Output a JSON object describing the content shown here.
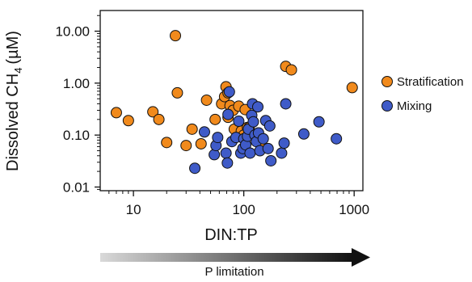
{
  "chart_data": {
    "type": "scatter",
    "xscale": "log",
    "yscale": "log",
    "xlim": [
      5,
      1200
    ],
    "ylim": [
      0.0085,
      25
    ],
    "xticks": [
      10,
      100,
      1000
    ],
    "xtick_labels": [
      "10",
      "100",
      "1000"
    ],
    "yticks": [
      0.01,
      0.1,
      1,
      10
    ],
    "ytick_labels": [
      "0.01",
      "0.10",
      "1.00",
      "10.00"
    ],
    "xlabel": "DIN:TP",
    "ylabel": "Dissolved CH₄ (µM)",
    "ylabel_main": "Dissolved CH",
    "ylabel_sub": "4",
    "ylabel_unit": "(µM)",
    "grid": false,
    "legend_position": "right",
    "annotation_arrow": {
      "label": "P limitation",
      "direction": "left-to-right",
      "gradient": [
        "#d9d9d9",
        "#111111"
      ]
    },
    "series": [
      {
        "name": "Stratification",
        "color": "#F18A1C",
        "points": [
          {
            "x": 7,
            "y": 0.27
          },
          {
            "x": 9,
            "y": 0.19
          },
          {
            "x": 15,
            "y": 0.28
          },
          {
            "x": 17,
            "y": 0.2
          },
          {
            "x": 20,
            "y": 0.072
          },
          {
            "x": 24,
            "y": 8.2
          },
          {
            "x": 25,
            "y": 0.65
          },
          {
            "x": 30,
            "y": 0.063
          },
          {
            "x": 34,
            "y": 0.13
          },
          {
            "x": 41,
            "y": 0.068
          },
          {
            "x": 46,
            "y": 0.47
          },
          {
            "x": 55,
            "y": 0.2
          },
          {
            "x": 63,
            "y": 0.4
          },
          {
            "x": 67,
            "y": 0.55
          },
          {
            "x": 69,
            "y": 0.85
          },
          {
            "x": 72,
            "y": 0.65
          },
          {
            "x": 72,
            "y": 0.22
          },
          {
            "x": 75,
            "y": 0.37
          },
          {
            "x": 80,
            "y": 0.3
          },
          {
            "x": 82,
            "y": 0.13
          },
          {
            "x": 90,
            "y": 0.36
          },
          {
            "x": 95,
            "y": 0.12
          },
          {
            "x": 100,
            "y": 0.1
          },
          {
            "x": 103,
            "y": 0.31
          },
          {
            "x": 108,
            "y": 0.14
          },
          {
            "x": 112,
            "y": 0.14
          },
          {
            "x": 140,
            "y": 0.07
          },
          {
            "x": 240,
            "y": 2.1
          },
          {
            "x": 270,
            "y": 1.8
          },
          {
            "x": 960,
            "y": 0.82
          }
        ]
      },
      {
        "name": "Mixing",
        "color": "#3F5BC8",
        "points": [
          {
            "x": 36,
            "y": 0.023
          },
          {
            "x": 44,
            "y": 0.115
          },
          {
            "x": 54,
            "y": 0.042
          },
          {
            "x": 56,
            "y": 0.063
          },
          {
            "x": 58,
            "y": 0.09
          },
          {
            "x": 69,
            "y": 0.045
          },
          {
            "x": 71,
            "y": 0.029
          },
          {
            "x": 72,
            "y": 0.25
          },
          {
            "x": 74,
            "y": 0.68
          },
          {
            "x": 78,
            "y": 0.075
          },
          {
            "x": 85,
            "y": 0.09
          },
          {
            "x": 90,
            "y": 0.185
          },
          {
            "x": 94,
            "y": 0.045
          },
          {
            "x": 98,
            "y": 0.055
          },
          {
            "x": 100,
            "y": 0.085
          },
          {
            "x": 104,
            "y": 0.065
          },
          {
            "x": 108,
            "y": 0.095
          },
          {
            "x": 110,
            "y": 0.13
          },
          {
            "x": 114,
            "y": 0.045
          },
          {
            "x": 118,
            "y": 0.24
          },
          {
            "x": 120,
            "y": 0.4
          },
          {
            "x": 122,
            "y": 0.18
          },
          {
            "x": 126,
            "y": 0.1
          },
          {
            "x": 130,
            "y": 0.075
          },
          {
            "x": 134,
            "y": 0.35
          },
          {
            "x": 136,
            "y": 0.11
          },
          {
            "x": 140,
            "y": 0.05
          },
          {
            "x": 150,
            "y": 0.085
          },
          {
            "x": 158,
            "y": 0.19
          },
          {
            "x": 166,
            "y": 0.055
          },
          {
            "x": 172,
            "y": 0.15
          },
          {
            "x": 176,
            "y": 0.032
          },
          {
            "x": 220,
            "y": 0.045
          },
          {
            "x": 232,
            "y": 0.07
          },
          {
            "x": 240,
            "y": 0.4
          },
          {
            "x": 350,
            "y": 0.105
          },
          {
            "x": 480,
            "y": 0.18
          },
          {
            "x": 690,
            "y": 0.085
          }
        ]
      }
    ]
  }
}
